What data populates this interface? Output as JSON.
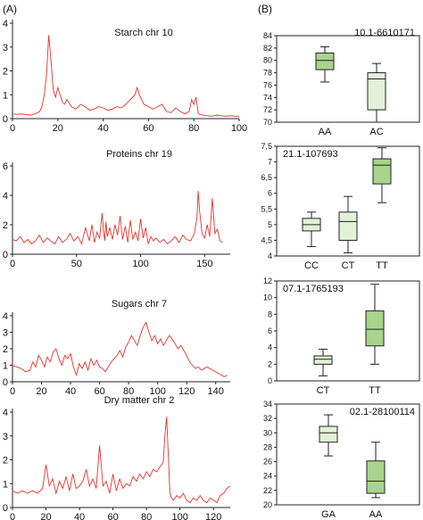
{
  "panel_labels": {
    "a": "(A)",
    "b": "(B)"
  },
  "chart_data": [
    {
      "type": "line",
      "title": "Starch chr 10",
      "xlim": [
        0,
        100
      ],
      "ylim": [
        0,
        4
      ],
      "x_ticks": [
        "0",
        "20",
        "40",
        "60",
        "80",
        "100"
      ],
      "y_ticks": [
        "0",
        "1",
        "2",
        "3",
        "4"
      ],
      "color": "#e8332c",
      "x": [
        0,
        2,
        4,
        6,
        8,
        10,
        12,
        13,
        14,
        15,
        16,
        17,
        18,
        19,
        20,
        21,
        22,
        23,
        24,
        26,
        28,
        30,
        32,
        34,
        36,
        38,
        40,
        42,
        44,
        46,
        48,
        50,
        52,
        54,
        55,
        56,
        58,
        60,
        62,
        64,
        66,
        68,
        70,
        72,
        74,
        76,
        78,
        79,
        80,
        81,
        82,
        84,
        86,
        88,
        90,
        92,
        94,
        96,
        98,
        100
      ],
      "y": [
        0.2,
        0.18,
        0.2,
        0.17,
        0.15,
        0.2,
        0.3,
        0.5,
        1.0,
        1.8,
        3.5,
        2.4,
        1.2,
        0.9,
        1.3,
        1.0,
        0.7,
        0.6,
        0.8,
        0.5,
        0.4,
        0.6,
        0.5,
        0.35,
        0.4,
        0.5,
        0.45,
        0.35,
        0.4,
        0.5,
        0.45,
        0.6,
        0.8,
        1.0,
        1.3,
        1.0,
        0.6,
        0.5,
        0.4,
        0.5,
        0.6,
        0.3,
        0.25,
        0.45,
        0.3,
        0.2,
        0.3,
        0.8,
        0.6,
        0.9,
        0.2,
        0.15,
        0.12,
        0.1,
        0.15,
        0.12,
        0.1,
        0.12,
        0.1,
        0.1
      ]
    },
    {
      "type": "line",
      "title": "Proteins  chr 19",
      "xlim": [
        0,
        170
      ],
      "ylim": [
        0,
        6
      ],
      "x_ticks": [
        "0",
        "50",
        "100",
        "150"
      ],
      "y_ticks": [
        "0",
        "2",
        "4",
        "6"
      ],
      "color": "#e8332c",
      "x": [
        0,
        3,
        6,
        9,
        12,
        15,
        18,
        21,
        24,
        27,
        30,
        33,
        36,
        39,
        42,
        45,
        48,
        51,
        54,
        57,
        60,
        62,
        64,
        66,
        68,
        70,
        71,
        72,
        73,
        74,
        76,
        78,
        80,
        82,
        84,
        86,
        88,
        90,
        92,
        94,
        96,
        98,
        100,
        102,
        104,
        106,
        108,
        110,
        112,
        115,
        118,
        121,
        124,
        127,
        130,
        133,
        136,
        139,
        142,
        144,
        145,
        146,
        148,
        150,
        152,
        154,
        156,
        158,
        160,
        162,
        164
      ],
      "y": [
        1.0,
        0.9,
        1.2,
        0.8,
        1.0,
        0.7,
        0.9,
        1.3,
        0.8,
        1.1,
        0.9,
        0.7,
        1.2,
        0.8,
        1.0,
        1.4,
        0.9,
        1.2,
        0.7,
        1.8,
        0.9,
        2.0,
        0.8,
        1.5,
        1.1,
        2.8,
        1.6,
        0.9,
        2.2,
        1.2,
        1.8,
        1.0,
        2.0,
        1.3,
        2.6,
        1.0,
        1.9,
        0.8,
        2.3,
        1.0,
        1.5,
        0.9,
        2.4,
        1.1,
        1.8,
        0.7,
        1.2,
        0.9,
        1.1,
        0.8,
        1.0,
        0.7,
        0.9,
        1.2,
        0.8,
        1.3,
        1.0,
        0.9,
        1.4,
        2.5,
        4.3,
        3.0,
        1.4,
        1.1,
        2.0,
        1.2,
        3.8,
        1.4,
        1.7,
        0.9,
        0.8
      ]
    },
    {
      "type": "line",
      "title": "Sugars chr 7",
      "xlim": [
        0,
        150
      ],
      "ylim": [
        0,
        4
      ],
      "x_ticks": [
        "0",
        "20",
        "40",
        "60",
        "80",
        "100",
        "120",
        "140"
      ],
      "y_ticks": [
        "0",
        "1",
        "2",
        "3",
        "4"
      ],
      "color": "#e8332c",
      "x": [
        0,
        3,
        6,
        9,
        12,
        14,
        16,
        18,
        20,
        22,
        24,
        26,
        28,
        30,
        32,
        34,
        36,
        38,
        40,
        42,
        44,
        46,
        48,
        50,
        52,
        54,
        56,
        58,
        60,
        62,
        64,
        66,
        68,
        70,
        72,
        74,
        76,
        78,
        80,
        82,
        84,
        86,
        88,
        90,
        92,
        94,
        96,
        98,
        100,
        102,
        104,
        106,
        108,
        110,
        112,
        114,
        116,
        118,
        120,
        122,
        124,
        126,
        128,
        130,
        132,
        134,
        136,
        138,
        140,
        142,
        144,
        146,
        148
      ],
      "y": [
        1.0,
        0.9,
        0.8,
        0.6,
        0.7,
        1.2,
        0.9,
        1.6,
        1.3,
        0.9,
        1.5,
        1.2,
        1.8,
        2.0,
        1.4,
        1.0,
        1.6,
        1.4,
        1.7,
        0.9,
        0.4,
        1.1,
        0.8,
        1.2,
        0.7,
        1.4,
        1.0,
        1.3,
        0.9,
        0.8,
        0.6,
        0.9,
        1.2,
        1.4,
        1.6,
        1.9,
        1.5,
        2.1,
        2.4,
        2.8,
        2.5,
        2.2,
        2.8,
        3.3,
        3.6,
        3.0,
        2.5,
        2.8,
        2.3,
        2.6,
        2.2,
        2.5,
        2.8,
        2.6,
        2.3,
        2.0,
        2.2,
        1.9,
        1.6,
        1.2,
        1.0,
        0.8,
        0.9,
        0.7,
        0.8,
        0.9,
        0.8,
        0.7,
        0.6,
        0.5,
        0.4,
        0.3,
        0.4
      ]
    },
    {
      "type": "line",
      "title": "Dry matter  chr 2",
      "xlim": [
        0,
        130
      ],
      "ylim": [
        0,
        4
      ],
      "x_ticks": [
        "0",
        "20",
        "40",
        "60",
        "80",
        "100",
        "120"
      ],
      "y_ticks": [
        "0",
        "1",
        "2",
        "3",
        "4"
      ],
      "color": "#e8332c",
      "x": [
        0,
        3,
        6,
        9,
        12,
        15,
        18,
        20,
        22,
        24,
        26,
        28,
        30,
        32,
        34,
        36,
        38,
        40,
        42,
        44,
        46,
        48,
        50,
        52,
        54,
        56,
        58,
        60,
        62,
        64,
        66,
        68,
        70,
        72,
        74,
        76,
        78,
        80,
        82,
        84,
        86,
        88,
        90,
        91,
        92,
        93,
        94,
        95,
        96,
        98,
        100,
        102,
        104,
        106,
        108,
        110,
        112,
        114,
        116,
        118,
        120,
        122,
        124,
        126,
        128,
        130
      ],
      "y": [
        0.7,
        0.6,
        0.7,
        0.6,
        0.7,
        0.6,
        0.8,
        1.8,
        0.9,
        1.2,
        0.6,
        1.1,
        0.8,
        1.3,
        0.7,
        1.4,
        0.8,
        0.9,
        1.1,
        1.6,
        0.9,
        1.2,
        0.8,
        2.6,
        0.9,
        1.1,
        0.6,
        1.4,
        0.7,
        1.2,
        0.8,
        1.0,
        0.9,
        1.3,
        1.1,
        1.4,
        1.2,
        1.5,
        1.3,
        1.6,
        1.5,
        1.7,
        1.9,
        3.0,
        3.8,
        2.2,
        0.6,
        0.4,
        0.3,
        0.5,
        0.4,
        0.6,
        0.3,
        0.2,
        0.4,
        0.3,
        0.5,
        0.3,
        0.2,
        0.4,
        0.3,
        0.2,
        0.5,
        0.6,
        0.8,
        0.9
      ]
    },
    {
      "type": "box",
      "annotation": "10.1-6610171",
      "ylim": [
        70,
        84
      ],
      "y_ticks": [
        "70",
        "72",
        "74",
        "76",
        "78",
        "80",
        "82",
        "84"
      ],
      "categories": [
        "AA",
        "AC"
      ],
      "boxes": [
        {
          "group": "AA",
          "min": 76.5,
          "q1": 78.5,
          "median": 80.0,
          "q3": 81.2,
          "max": 82.2,
          "fill": "#a8d48c"
        },
        {
          "group": "AC",
          "min": 70.0,
          "q1": 72.0,
          "median": 77.0,
          "q3": 78.0,
          "max": 79.5,
          "fill": "#e3f1d6"
        }
      ]
    },
    {
      "type": "box",
      "annotation": "21.1-107693",
      "ylim": [
        4,
        7.5
      ],
      "y_ticks": [
        "4",
        "4,5",
        "5",
        "5,5",
        "6",
        "6,5",
        "7",
        "7,5"
      ],
      "categories": [
        "CC",
        "CT",
        "TT"
      ],
      "boxes": [
        {
          "group": "CC",
          "min": 4.3,
          "q1": 4.8,
          "median": 5.0,
          "q3": 5.2,
          "max": 5.4,
          "fill": "#e3f1d6"
        },
        {
          "group": "CT",
          "min": 4.1,
          "q1": 4.5,
          "median": 5.1,
          "q3": 5.4,
          "max": 5.9,
          "fill": "#e3f1d6"
        },
        {
          "group": "TT",
          "min": 5.7,
          "q1": 6.3,
          "median": 6.9,
          "q3": 7.1,
          "max": 7.45,
          "fill": "#a8d48c"
        }
      ]
    },
    {
      "type": "box",
      "annotation": "07.1-1765193",
      "ylim": [
        0,
        12
      ],
      "y_ticks": [
        "0",
        "2",
        "4",
        "6",
        "8",
        "10",
        "12"
      ],
      "categories": [
        "CT",
        "TT"
      ],
      "boxes": [
        {
          "group": "CT",
          "min": 0.6,
          "q1": 2.0,
          "median": 2.6,
          "q3": 3.0,
          "max": 3.8,
          "fill": "#e3f1d6"
        },
        {
          "group": "TT",
          "min": 2.0,
          "q1": 4.2,
          "median": 6.2,
          "q3": 8.4,
          "max": 11.6,
          "fill": "#a8d48c"
        }
      ]
    },
    {
      "type": "box",
      "annotation": "02.1-28100114",
      "ylim": [
        20,
        34
      ],
      "y_ticks": [
        "20",
        "22",
        "24",
        "26",
        "28",
        "30",
        "32",
        "34"
      ],
      "categories": [
        "GA",
        "AA"
      ],
      "boxes": [
        {
          "group": "GA",
          "min": 26.8,
          "q1": 28.7,
          "median": 30.0,
          "q3": 30.9,
          "max": 32.5,
          "fill": "#e3f1d6"
        },
        {
          "group": "AA",
          "min": 21.0,
          "q1": 21.6,
          "median": 23.3,
          "q3": 26.1,
          "max": 28.7,
          "fill": "#a8d48c"
        }
      ]
    }
  ]
}
